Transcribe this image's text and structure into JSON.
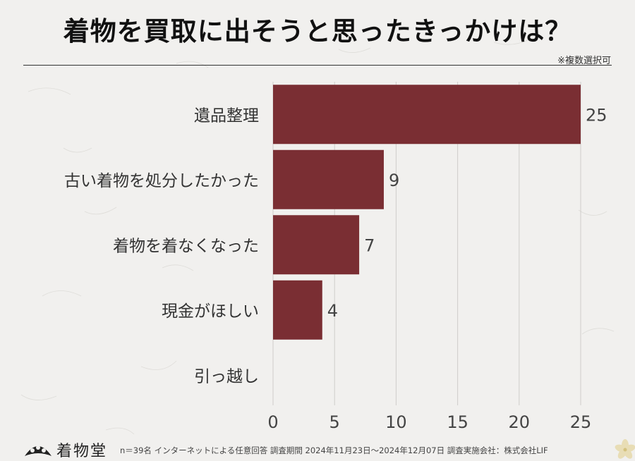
{
  "title": "着物を買取に出そうと思ったきっかけは？",
  "note": "※複数選択可",
  "footer": {
    "logo_text": "着物堂",
    "survey_info": "n＝39名 インターネットによる任意回答 調査期間 2024年11月23日～2024年12月07日 調査実施会社：株式会社LIF"
  },
  "colors": {
    "bar": "#7a2e33",
    "background": "#f1f0ee",
    "grid": "#cfcdca"
  },
  "chart_data": {
    "type": "bar",
    "orientation": "horizontal",
    "categories": [
      "遺品整理",
      "古い着物を処分したかった",
      "着物を着なくなった",
      "現金がほしい",
      "引っ越し"
    ],
    "values": [
      25,
      9,
      7,
      4,
      0
    ],
    "value_labels": [
      "25",
      "9",
      "7",
      "4",
      ""
    ],
    "xlim": [
      0,
      25
    ],
    "xticks": [
      0,
      5,
      10,
      15,
      20,
      25
    ],
    "grid": "vertical",
    "xlabel": "",
    "ylabel": ""
  }
}
